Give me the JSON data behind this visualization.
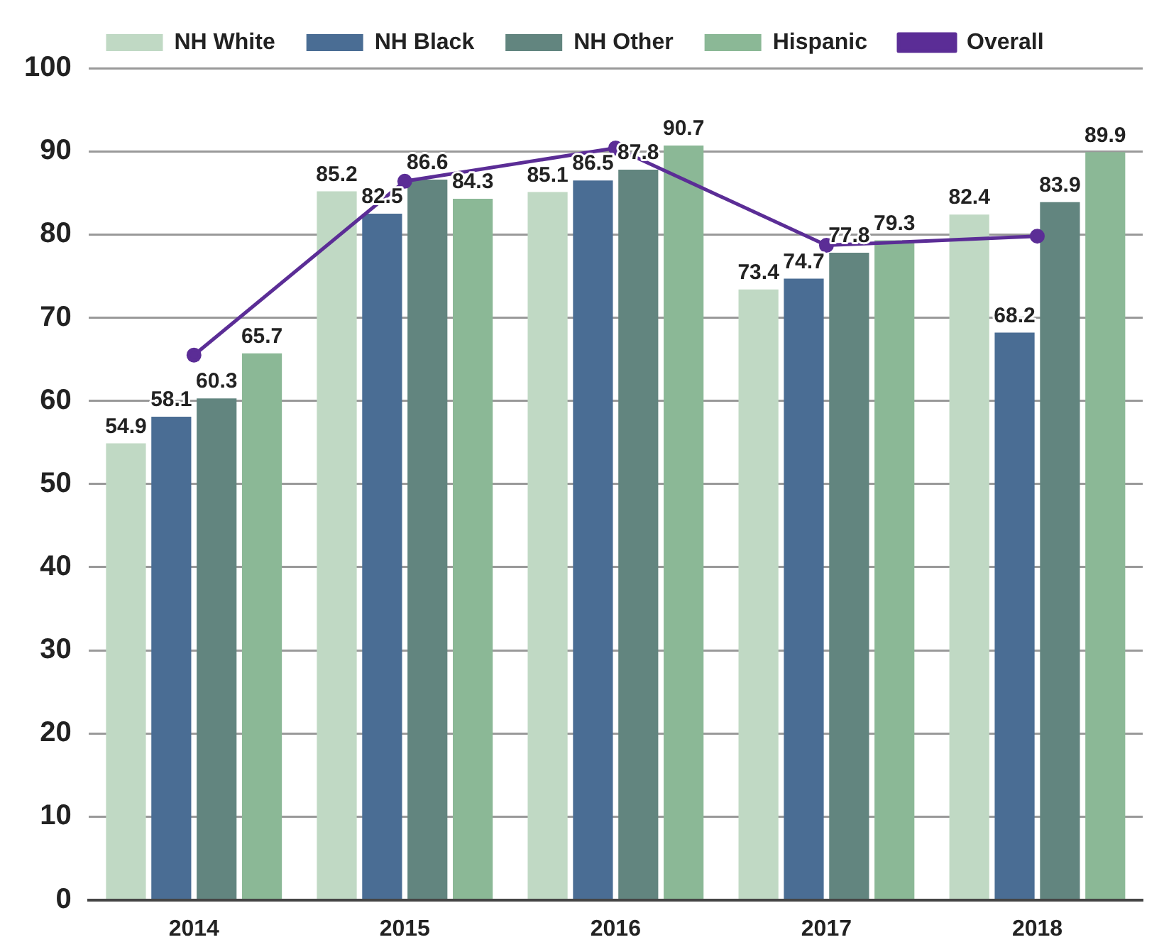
{
  "chart_data": {
    "type": "bar",
    "categories": [
      "2014",
      "2015",
      "2016",
      "2017",
      "2018"
    ],
    "series": [
      {
        "name": "NH White",
        "color": "#c0d9c4",
        "values": [
          54.9,
          85.2,
          85.1,
          73.4,
          82.4
        ],
        "value_labels": [
          "54.9",
          "85.2",
          "85.1",
          "73.4",
          "82.4"
        ]
      },
      {
        "name": "NH Black",
        "color": "#4a6d94",
        "values": [
          58.1,
          82.5,
          86.5,
          74.7,
          68.2
        ],
        "value_labels": [
          "58.1",
          "82.5",
          "86.5",
          "74.7",
          "68.2"
        ]
      },
      {
        "name": "NH Other",
        "color": "#62857f",
        "values": [
          60.3,
          86.6,
          87.8,
          77.8,
          83.9
        ],
        "value_labels": [
          "60.3",
          "86.6",
          "87.8",
          "77.8",
          "83.9"
        ]
      },
      {
        "name": "Hispanic",
        "color": "#8bb896",
        "values": [
          65.7,
          84.3,
          90.7,
          79.3,
          89.9
        ],
        "value_labels": [
          "65.7",
          "84.3",
          "90.7",
          "79.3",
          "89.9"
        ]
      },
      {
        "name": "Overall",
        "type": "line",
        "color": "#5b2d96",
        "values": [
          65.5,
          86.4,
          90.4,
          78.7,
          79.8
        ]
      }
    ],
    "ylim": [
      0,
      100
    ],
    "yticks": [
      0,
      10,
      20,
      30,
      40,
      50,
      60,
      70,
      80,
      90,
      100
    ],
    "grid": "y",
    "legend": "top",
    "marker": "circle"
  }
}
